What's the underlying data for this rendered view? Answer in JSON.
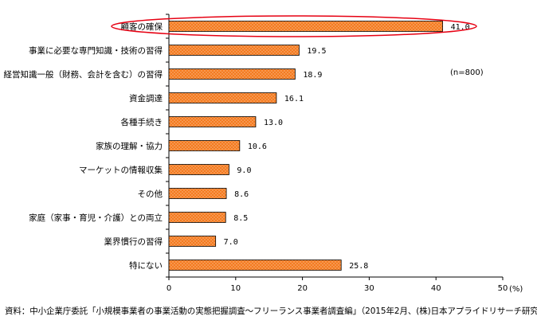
{
  "chart_data": {
    "type": "bar",
    "orientation": "horizontal",
    "categories": [
      "顧客の確保",
      "事業に必要な専門知識・技術の習得",
      "経営知識一般（財務、会計を含む）の習得",
      "資金調達",
      "各種手続き",
      "家族の理解・協力",
      "マーケットの情報収集",
      "その他",
      "家庭（家事・育児・介護）との両立",
      "業界慣行の習得",
      "特にない"
    ],
    "values": [
      41.0,
      19.5,
      18.9,
      16.1,
      13.0,
      10.6,
      9.0,
      8.6,
      8.5,
      7.0,
      25.8
    ],
    "value_labels": [
      "41.0",
      "19.5",
      "18.9",
      "16.1",
      "13.0",
      "10.6",
      "9.0",
      "8.6",
      "8.5",
      "7.0",
      "25.8"
    ],
    "xlim": [
      0,
      50
    ],
    "xticks": [
      "0",
      "10",
      "20",
      "30",
      "40",
      "50"
    ],
    "unit": "(%)",
    "annotation": "(n=800)",
    "highlighted_category": "顧客の確保",
    "grid": false,
    "bar_color": "#f47b20",
    "highlight_color": "#e60012",
    "source": "資料：中小企業庁委託「小規模事業者の事業活動の実態把握調査～フリーランス事業者調査編」（2015年2月、(株)日本アプライドリサーチ研究所）"
  }
}
